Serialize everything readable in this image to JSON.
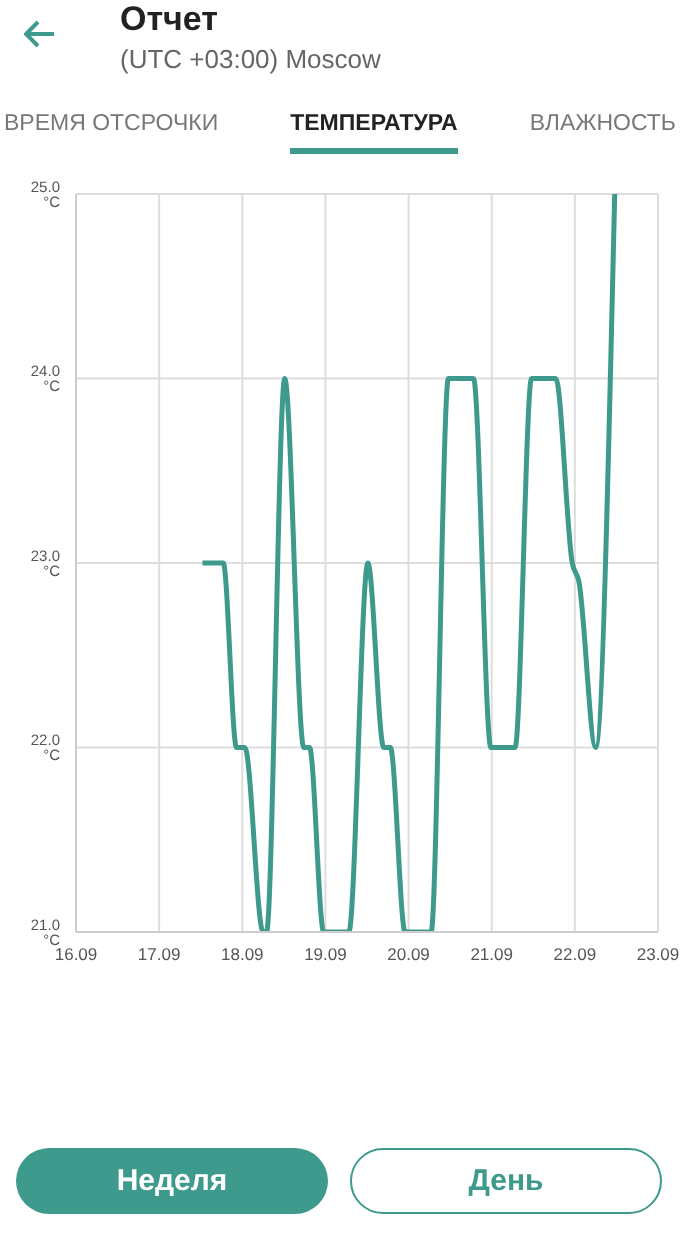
{
  "chart_data": {
    "type": "line",
    "title": "Отчет",
    "subtitle": "(UTC +03:00) Moscow",
    "annotations": [
      "ВРЕМЯ ОТСРОЧКИ",
      "ТЕМПЕРАТУРА",
      "ВЛАЖНОСТЬ",
      "Неделя",
      "День"
    ],
    "x": [
      "--09-17T12:30",
      "--09-17T18:30",
      "--09-17T22:20",
      "--09-18T00:45",
      "--09-18T06:00",
      "--09-18T07:00",
      "--09-18T12:15",
      "--09-18T17:45",
      "--09-18T19:25",
      "--09-18T23:30",
      "--09-19T06:45",
      "--09-19T12:15",
      "--09-19T16:50",
      "--09-19T18:45",
      "--09-19T23:00",
      "--09-20T06:30",
      "--09-20T11:30",
      "--09-20T18:45",
      "--09-20T23:45",
      "--09-21T06:45",
      "--09-21T11:30",
      "--09-21T18:30",
      "--09-21T23:15",
      "--09-22T01:10",
      "--09-22T06:00",
      "--09-22T11:30"
    ],
    "series": [
      {
        "color": "#3d9a8d",
        "values": [
          23,
          23,
          22,
          22,
          21,
          21,
          24,
          22,
          22,
          21,
          21,
          23,
          22,
          22,
          21,
          21,
          24,
          24,
          22,
          22,
          24,
          24,
          23,
          22.9,
          22,
          25
        ]
      }
    ],
    "xlim": [
      "--09-16",
      "--09-23"
    ],
    "xticks": [
      {
        "value": "--09-16",
        "label": "16.09"
      },
      {
        "value": "--09-17",
        "label": "17.09"
      },
      {
        "value": "--09-18",
        "label": "18.09"
      },
      {
        "value": "--09-19",
        "label": "19.09"
      },
      {
        "value": "--09-20",
        "label": "20.09"
      },
      {
        "value": "--09-21",
        "label": "21.09"
      },
      {
        "value": "--09-22",
        "label": "22.09"
      },
      {
        "value": "--09-23",
        "label": "23.09"
      }
    ],
    "ylim": [
      21,
      25
    ],
    "yticks": [
      {
        "value": 21,
        "label": "21.0 °C"
      },
      {
        "value": 22,
        "label": "22.0 °C"
      },
      {
        "value": 23,
        "label": "23.0 °C"
      },
      {
        "value": 24,
        "label": "24.0 °C"
      },
      {
        "value": 25,
        "label": "25.0 °C"
      }
    ],
    "grid": true,
    "marker": "none",
    "line_style": "solid"
  }
}
